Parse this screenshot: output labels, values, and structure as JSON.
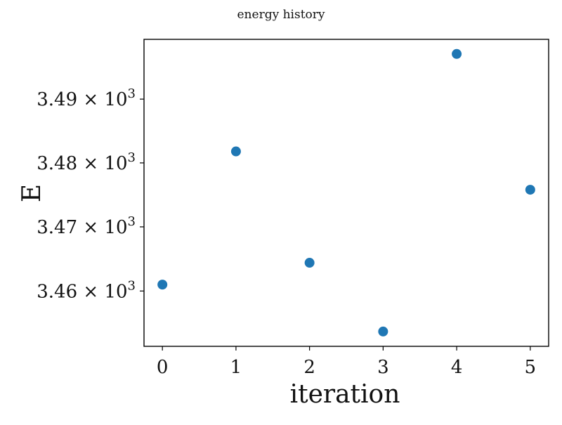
{
  "chart_data": {
    "type": "scatter",
    "title": "energy history",
    "xlabel": "iteration",
    "ylabel": "E",
    "x": [
      0,
      1,
      2,
      3,
      4,
      5
    ],
    "y": [
      3461.0,
      3481.8,
      3464.4,
      3453.7,
      3497.1,
      3475.8
    ],
    "xlim": [
      -0.25,
      5.25
    ],
    "ylim": [
      3451.4,
      3499.4
    ],
    "yscale": "log",
    "x_ticks": [
      0,
      1,
      2,
      3,
      4,
      5
    ],
    "x_tick_labels": [
      "0",
      "1",
      "2",
      "3",
      "4",
      "5"
    ],
    "y_ticks": [
      3460,
      3470,
      3480,
      3490
    ],
    "y_tick_labels": [
      {
        "mantissa": "3.46",
        "times": "×",
        "base": "10",
        "exponent": "3"
      },
      {
        "mantissa": "3.47",
        "times": "×",
        "base": "10",
        "exponent": "3"
      },
      {
        "mantissa": "3.48",
        "times": "×",
        "base": "10",
        "exponent": "3"
      },
      {
        "mantissa": "3.49",
        "times": "×",
        "base": "10",
        "exponent": "3"
      }
    ],
    "grid": false,
    "legend": "none",
    "marker_color": "#1f77b4",
    "axis_color": "#000000"
  }
}
